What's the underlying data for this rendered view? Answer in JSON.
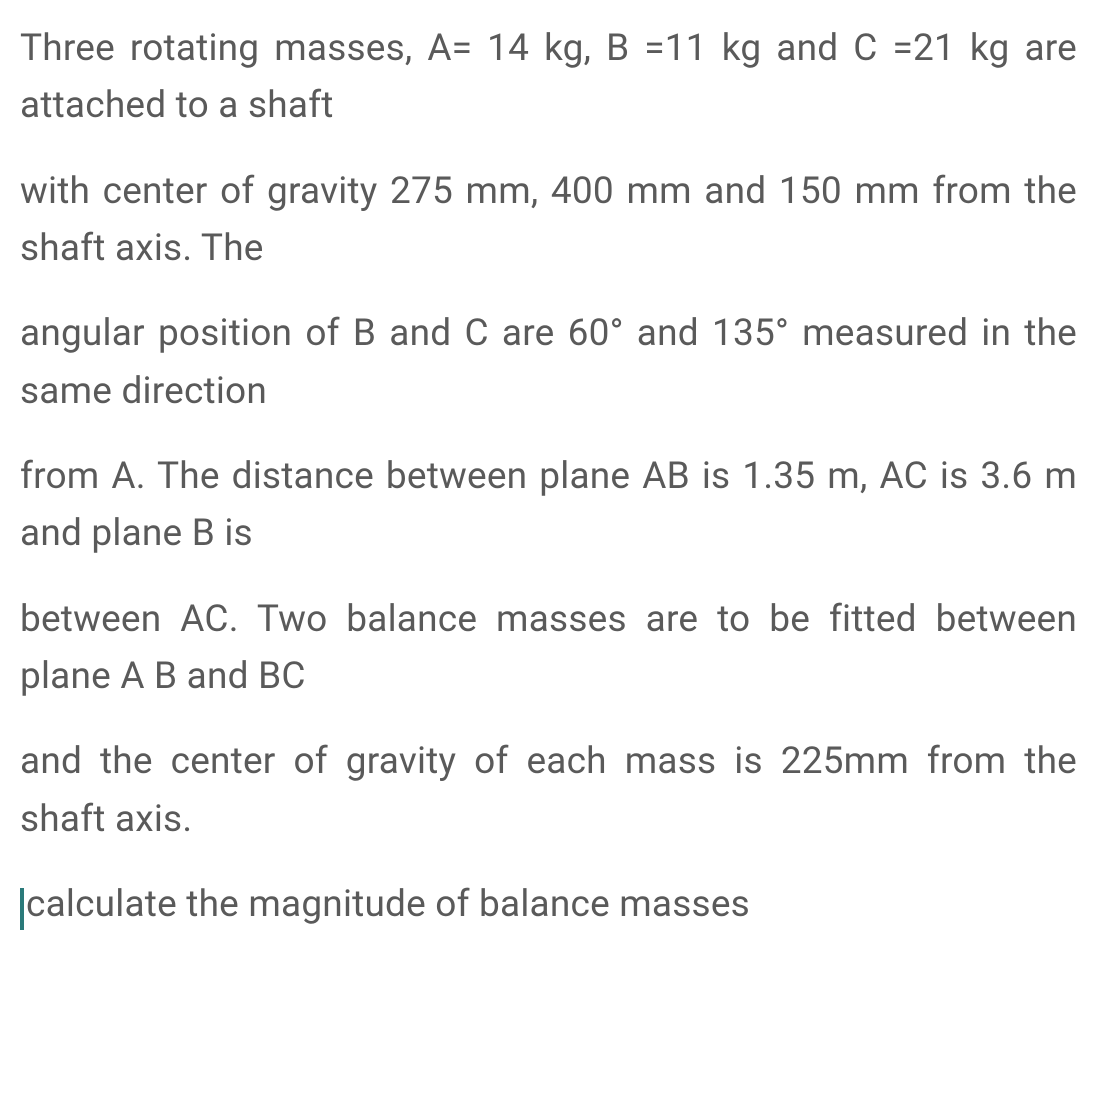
{
  "problem": {
    "paragraphs": [
      "Three rotating masses, A= 14 kg, B =11 kg and C =21 kg are attached to a shaft",
      "with center of gravity 275 mm, 400 mm and 150 mm from the shaft axis. The",
      "angular position of B and C are 60° and 135° measured in the same direction",
      "from A. The distance between plane AB is 1.35 m, AC is 3.6 m and plane B is",
      "between AC. Two balance masses are to be fitted between plane A B and BC",
      "and the center of gravity of each mass is 225mm from the shaft axis.",
      "calculate the magnitude of balance masses"
    ]
  },
  "styling": {
    "text_color": "#5a5a5a",
    "background_color": "#ffffff",
    "font_size": 37,
    "line_height": 1.55,
    "text_align": "justify",
    "cursor_color": "#2a7a7a"
  }
}
